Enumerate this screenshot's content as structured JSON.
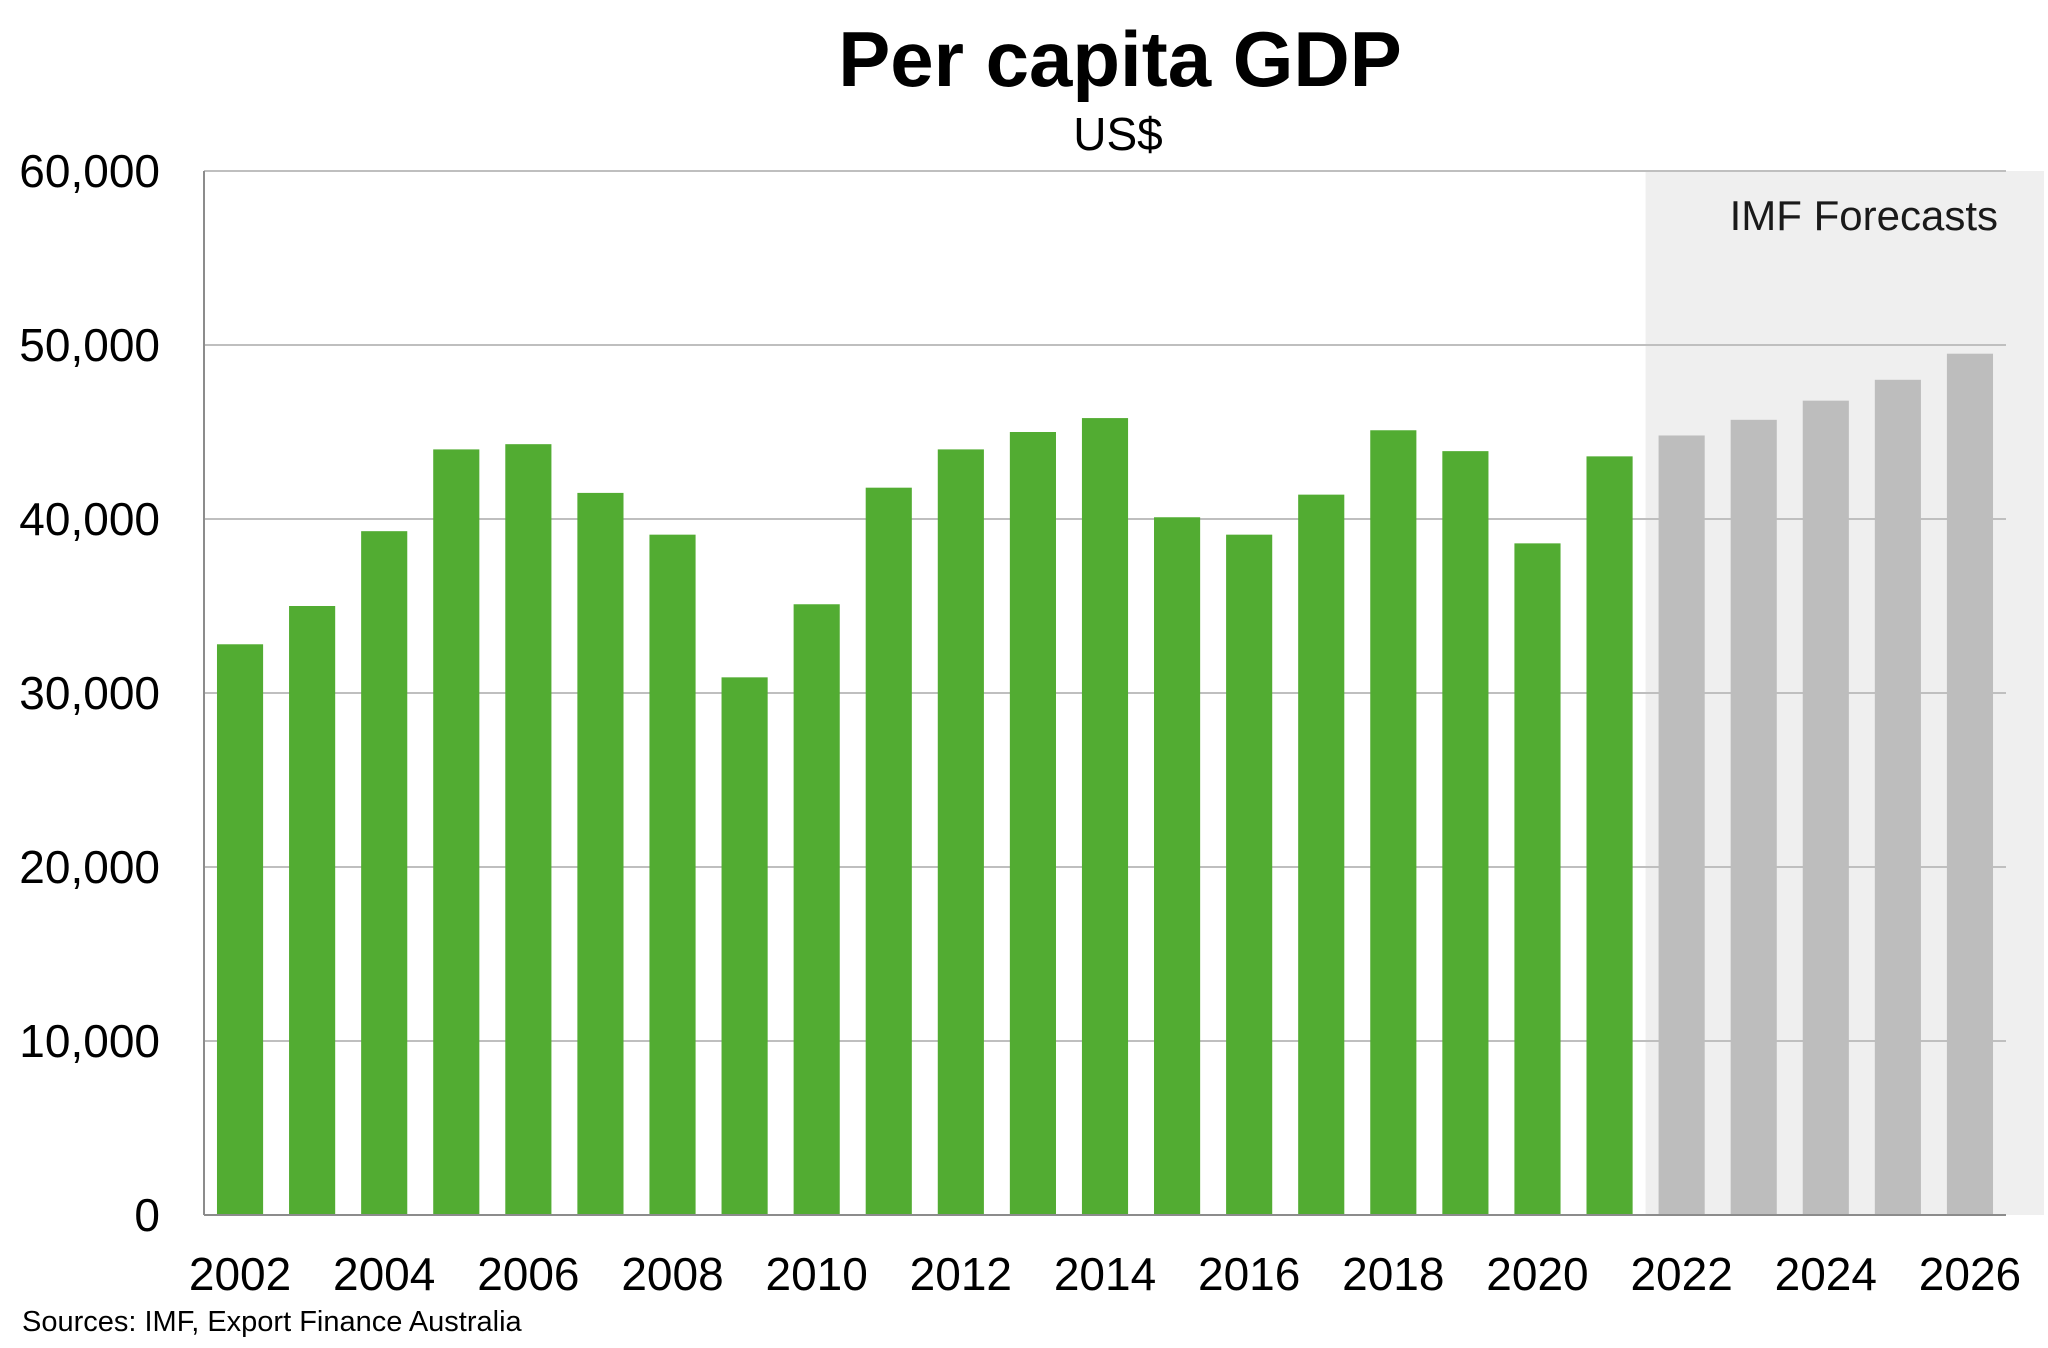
{
  "chart_data": {
    "type": "bar",
    "title": "Per capita GDP",
    "subtitle": "US$",
    "xlabel": "",
    "ylabel": "",
    "ylim": [
      0,
      60000
    ],
    "yticks": [
      0,
      10000,
      20000,
      30000,
      40000,
      50000,
      60000
    ],
    "ytick_labels": [
      "0",
      "10,000",
      "20,000",
      "30,000",
      "40,000",
      "50,000",
      "60,000"
    ],
    "xtick_labels": [
      "2002",
      "2004",
      "2006",
      "2008",
      "2010",
      "2012",
      "2014",
      "2016",
      "2018",
      "2020",
      "2022",
      "2024",
      "2026"
    ],
    "grid": true,
    "categories": [
      "2002",
      "2003",
      "2004",
      "2005",
      "2006",
      "2007",
      "2008",
      "2009",
      "2010",
      "2011",
      "2012",
      "2013",
      "2014",
      "2015",
      "2016",
      "2017",
      "2018",
      "2019",
      "2020",
      "2021",
      "2022",
      "2023",
      "2024",
      "2025",
      "2026"
    ],
    "values": [
      32800,
      35000,
      39300,
      44000,
      44300,
      41500,
      39100,
      30900,
      35100,
      41800,
      44000,
      45000,
      45800,
      40100,
      39100,
      41400,
      45100,
      43900,
      38600,
      43600,
      44800,
      45700,
      46800,
      48000,
      49500
    ],
    "forecast_start": "2022",
    "forecast_label": "IMF Forecasts",
    "colors": {
      "actual": "#52ac32",
      "forecast": "#bdbdbd",
      "forecast_band": "#efefef",
      "grid": "#bfbfbf",
      "axis": "#8c8c8c"
    }
  },
  "footer": {
    "source": "Sources: IMF, Export Finance Australia"
  }
}
